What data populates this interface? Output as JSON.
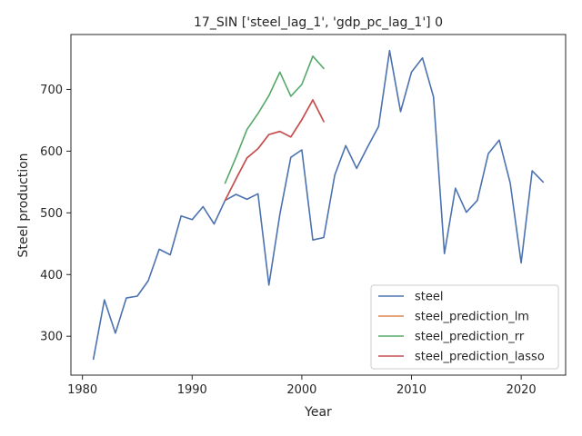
{
  "chart_data": {
    "type": "line",
    "title": "17_SIN ['steel_lag_1', 'gdp_pc_lag_1'] 0",
    "xlabel": "Year",
    "ylabel": "Steel production",
    "xlim": [
      1978.95,
      2024.05
    ],
    "ylim": [
      237,
      789
    ],
    "xticks": [
      1980,
      1990,
      2000,
      2010,
      2020
    ],
    "yticks": [
      300,
      400,
      500,
      600,
      700
    ],
    "grid": false,
    "legend_position": "lower-right",
    "series": [
      {
        "name": "steel",
        "color": "#4c72b0",
        "x": [
          1981,
          1982,
          1983,
          1984,
          1985,
          1986,
          1987,
          1988,
          1989,
          1990,
          1991,
          1992,
          1993,
          1994,
          1995,
          1996,
          1997,
          1998,
          1999,
          2000,
          2001,
          2002,
          2003,
          2004,
          2005,
          2006,
          2007,
          2008,
          2009,
          2010,
          2011,
          2012,
          2013,
          2014,
          2015,
          2016,
          2017,
          2018,
          2019,
          2020,
          2021,
          2022
        ],
        "y": [
          263,
          359,
          305,
          362,
          365,
          390,
          441,
          432,
          495,
          489,
          510,
          482,
          520,
          530,
          522,
          531,
          383,
          498,
          590,
          602,
          456,
          460,
          561,
          609,
          572,
          607,
          640,
          763,
          664,
          728,
          751,
          688,
          434,
          540,
          501,
          520,
          596,
          618,
          548,
          419,
          568,
          550
        ]
      },
      {
        "name": "steel_prediction_lm",
        "color": "#dd8452",
        "x": [
          1993,
          1994,
          1995,
          1996,
          1997,
          1998,
          1999,
          2000,
          2001,
          2002
        ],
        "y": [
          520,
          555,
          589,
          604,
          627,
          632,
          623,
          651,
          683,
          648
        ]
      },
      {
        "name": "steel_prediction_rr",
        "color": "#55a868",
        "x": [
          1993,
          1994,
          1995,
          1996,
          1997,
          1998,
          1999,
          2000,
          2001,
          2002
        ],
        "y": [
          548,
          590,
          635,
          661,
          690,
          728,
          689,
          708,
          754,
          734
        ]
      },
      {
        "name": "steel_prediction_lasso",
        "color": "#c44e52",
        "x": [
          1993,
          1994,
          1995,
          1996,
          1997,
          1998,
          1999,
          2000,
          2001,
          2002
        ],
        "y": [
          520,
          555,
          589,
          604,
          627,
          632,
          623,
          651,
          683,
          648
        ]
      }
    ]
  }
}
